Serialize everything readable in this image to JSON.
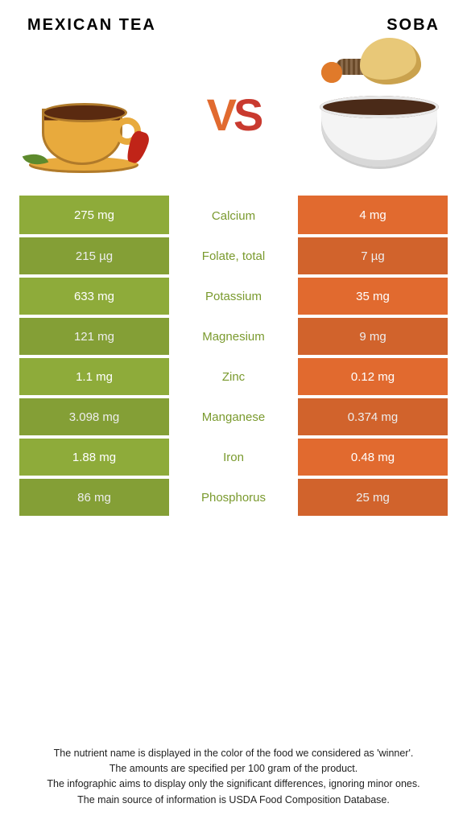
{
  "left": {
    "title": "Mexican tea",
    "color": "#8eab3a",
    "label_color": "#7a9a2e"
  },
  "right": {
    "title": "Soba",
    "color": "#e16a2f"
  },
  "vs": {
    "v": "V",
    "s": "S"
  },
  "rows": [
    {
      "left": "275 mg",
      "label": "Calcium",
      "right": "4 mg"
    },
    {
      "left": "215 µg",
      "label": "Folate, total",
      "right": "7 µg"
    },
    {
      "left": "633 mg",
      "label": "Potassium",
      "right": "35 mg"
    },
    {
      "left": "121 mg",
      "label": "Magnesium",
      "right": "9 mg"
    },
    {
      "left": "1.1 mg",
      "label": "Zinc",
      "right": "0.12 mg"
    },
    {
      "left": "3.098 mg",
      "label": "Manganese",
      "right": "0.374 mg"
    },
    {
      "left": "1.88 mg",
      "label": "Iron",
      "right": "0.48 mg"
    },
    {
      "left": "86 mg",
      "label": "Phosphorus",
      "right": "25 mg"
    }
  ],
  "footer": [
    "The nutrient name is displayed in the color of the food we considered as 'winner'.",
    "The amounts are specified per 100 gram of the product.",
    "The infographic aims to display only the significant differences, ignoring minor ones.",
    "The main source of information is USDA Food Composition Database."
  ]
}
